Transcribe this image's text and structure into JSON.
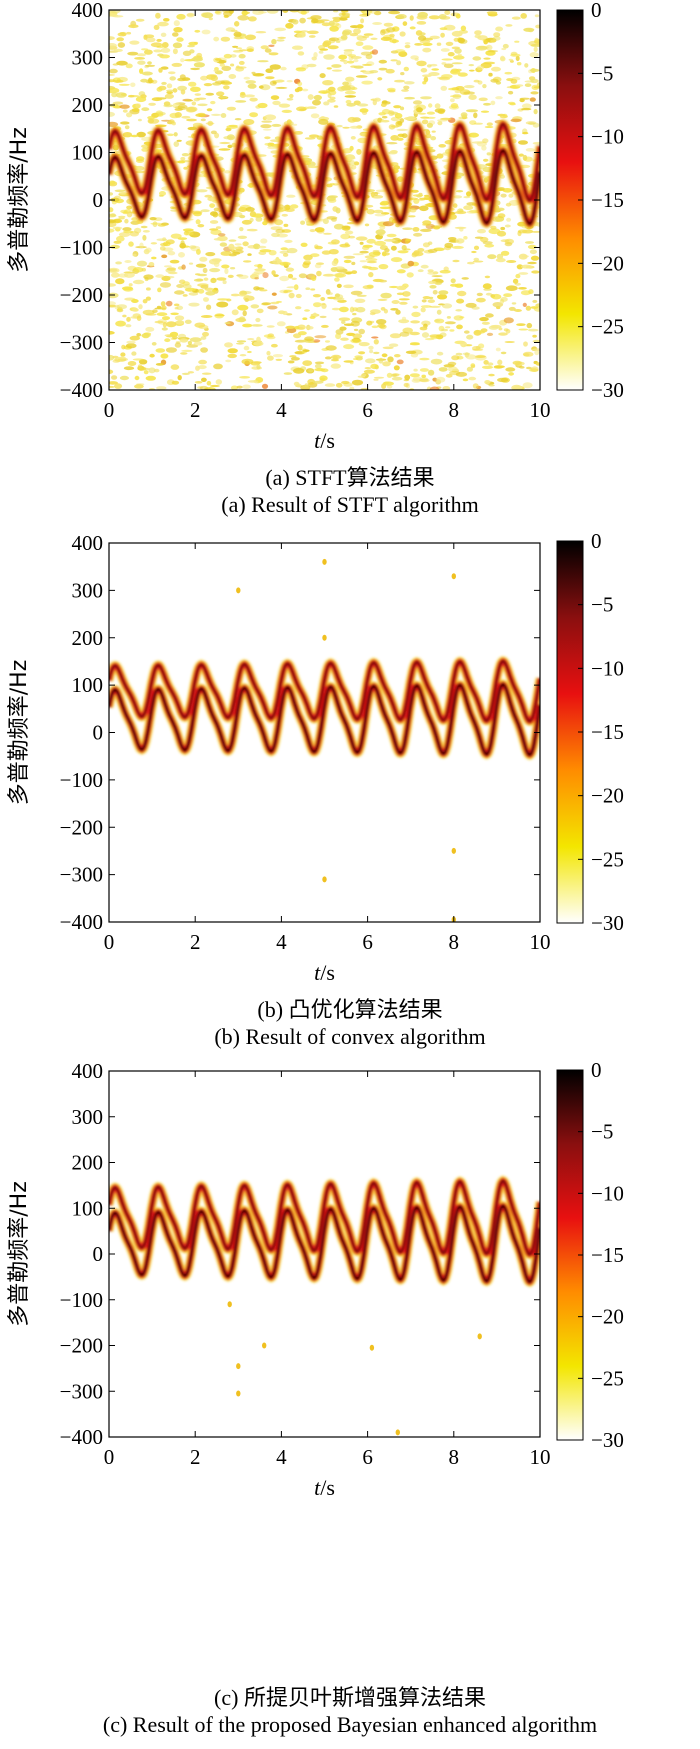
{
  "chart_data": [
    {
      "type": "heatmap",
      "panel": "a",
      "xlabel": "t/s",
      "ylabel": "多普勒频率/Hz",
      "xlim": [
        0,
        10
      ],
      "ylim": [
        -400,
        400
      ],
      "xticks": [
        0,
        2,
        4,
        6,
        8,
        10
      ],
      "yticks": [
        400,
        300,
        200,
        100,
        0,
        -100,
        -200,
        -300,
        -400
      ],
      "colorbar": {
        "range": [
          -30,
          0
        ],
        "ticks": [
          0,
          -5,
          -10,
          -15,
          -20,
          -25,
          -30
        ]
      },
      "colormap": [
        "#ffffff",
        "#f3e600",
        "#ff8c00",
        "#e81010",
        "#8a0f0f",
        "#000000"
      ],
      "background": "noise",
      "signal": {
        "period_s": 1.0,
        "band_upper_hz": {
          "peak": 150,
          "trough": 10
        },
        "band_lower_hz": {
          "peak": 95,
          "trough": -40
        },
        "amplitude_growth_to_t10": 1.25
      },
      "caption_zh": "(a) STFT算法结果",
      "caption_en": "(a) Result of STFT algorithm"
    },
    {
      "type": "heatmap",
      "panel": "b",
      "xlabel": "t/s",
      "ylabel": "多普勒频率/Hz",
      "xlim": [
        0,
        10
      ],
      "ylim": [
        -400,
        400
      ],
      "xticks": [
        0,
        2,
        4,
        6,
        8,
        10
      ],
      "yticks": [
        400,
        300,
        200,
        100,
        0,
        -100,
        -200,
        -300,
        -400
      ],
      "colorbar": {
        "range": [
          -30,
          0
        ],
        "ticks": [
          0,
          -5,
          -10,
          -15,
          -20,
          -25,
          -30
        ]
      },
      "colormap": [
        "#ffffff",
        "#f3e600",
        "#ff8c00",
        "#e81010",
        "#8a0f0f",
        "#000000"
      ],
      "background": "clean",
      "signal": {
        "period_s": 1.0,
        "band_upper_hz": {
          "peak": 145,
          "trough": 30
        },
        "band_lower_hz": {
          "peak": 95,
          "trough": -40
        },
        "amplitude_growth_to_t10": 1.2
      },
      "spurious_points": [
        [
          3.0,
          300
        ],
        [
          5.0,
          360
        ],
        [
          5.0,
          200
        ],
        [
          5.0,
          -310
        ],
        [
          8.0,
          330
        ],
        [
          8.0,
          -250
        ],
        [
          8.0,
          -395
        ]
      ],
      "caption_zh": "(b) 凸优化算法结果",
      "caption_en": "(b) Result of convex algorithm"
    },
    {
      "type": "heatmap",
      "panel": "c",
      "xlabel": "t/s",
      "ylabel": "多普勒频率/Hz",
      "xlim": [
        0,
        10
      ],
      "ylim": [
        -400,
        400
      ],
      "xticks": [
        0,
        2,
        4,
        6,
        8,
        10
      ],
      "yticks": [
        400,
        300,
        200,
        100,
        0,
        -100,
        -200,
        -300,
        -400
      ],
      "colorbar": {
        "range": [
          -30,
          0
        ],
        "ticks": [
          0,
          -5,
          -10,
          -15,
          -20,
          -25,
          -30
        ]
      },
      "colormap": [
        "#ffffff",
        "#f3e600",
        "#ff8c00",
        "#e81010",
        "#8a0f0f",
        "#000000"
      ],
      "background": "clean",
      "signal": {
        "period_s": 1.0,
        "band_upper_hz": {
          "peak": 150,
          "trough": 10
        },
        "band_lower_hz": {
          "peak": 95,
          "trough": -50
        },
        "amplitude_growth_to_t10": 1.25
      },
      "spurious_points": [
        [
          2.8,
          -110
        ],
        [
          3.0,
          -245
        ],
        [
          3.0,
          -305
        ],
        [
          3.6,
          -200
        ],
        [
          6.1,
          -205
        ],
        [
          8.6,
          -180
        ],
        [
          6.7,
          -390
        ]
      ],
      "caption_zh": "(c) 所提贝叶斯增强算法结果",
      "caption_en": "(c) Result of the proposed Bayesian enhanced algorithm"
    }
  ]
}
